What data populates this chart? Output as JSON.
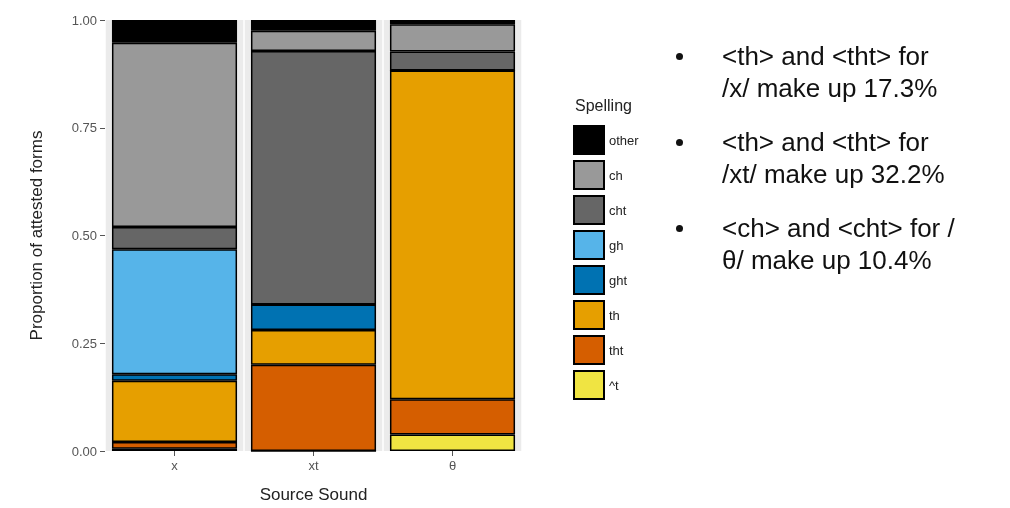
{
  "chart_data": {
    "type": "bar",
    "stacked": true,
    "xlabel": "Source Sound",
    "ylabel": "Proportion of attested forms",
    "legend_title": "Spelling",
    "categories": [
      "x",
      "xt",
      "θ"
    ],
    "series": [
      {
        "name": "^t",
        "color": "#f0e442",
        "values": [
          0.005,
          0,
          0.038
        ]
      },
      {
        "name": "tht",
        "color": "#d55e00",
        "values": [
          0.016,
          0.2,
          0.082
        ]
      },
      {
        "name": "th",
        "color": "#e69f00",
        "values": [
          0.142,
          0.081,
          0.763
        ]
      },
      {
        "name": "ght",
        "color": "#0072b2",
        "values": [
          0.015,
          0.059,
          0
        ]
      },
      {
        "name": "gh",
        "color": "#56b4e9",
        "values": [
          0.29,
          0,
          0
        ]
      },
      {
        "name": "cht",
        "color": "#666666",
        "values": [
          0.052,
          0.588,
          0.044
        ]
      },
      {
        "name": "ch",
        "color": "#999999",
        "values": [
          0.427,
          0.047,
          0.063
        ]
      },
      {
        "name": "other",
        "color": "#000000",
        "values": [
          0.053,
          0.025,
          0.01
        ]
      }
    ],
    "ylim": [
      0,
      1
    ],
    "yticks": [
      {
        "value": 0,
        "label": "0.00"
      },
      {
        "value": 0.25,
        "label": "0.25"
      },
      {
        "value": 0.5,
        "label": "0.50"
      },
      {
        "value": 0.75,
        "label": "0.75"
      },
      {
        "value": 1,
        "label": "1.00"
      }
    ],
    "grid": true,
    "legend": "right",
    "annotations": [
      "<th> and <tht> for /x/ make up 17.3%",
      "<th> and <tht> for /xt/ make up 32.2%",
      "<ch> and <cht> for /θ/ make up 10.4%"
    ]
  }
}
